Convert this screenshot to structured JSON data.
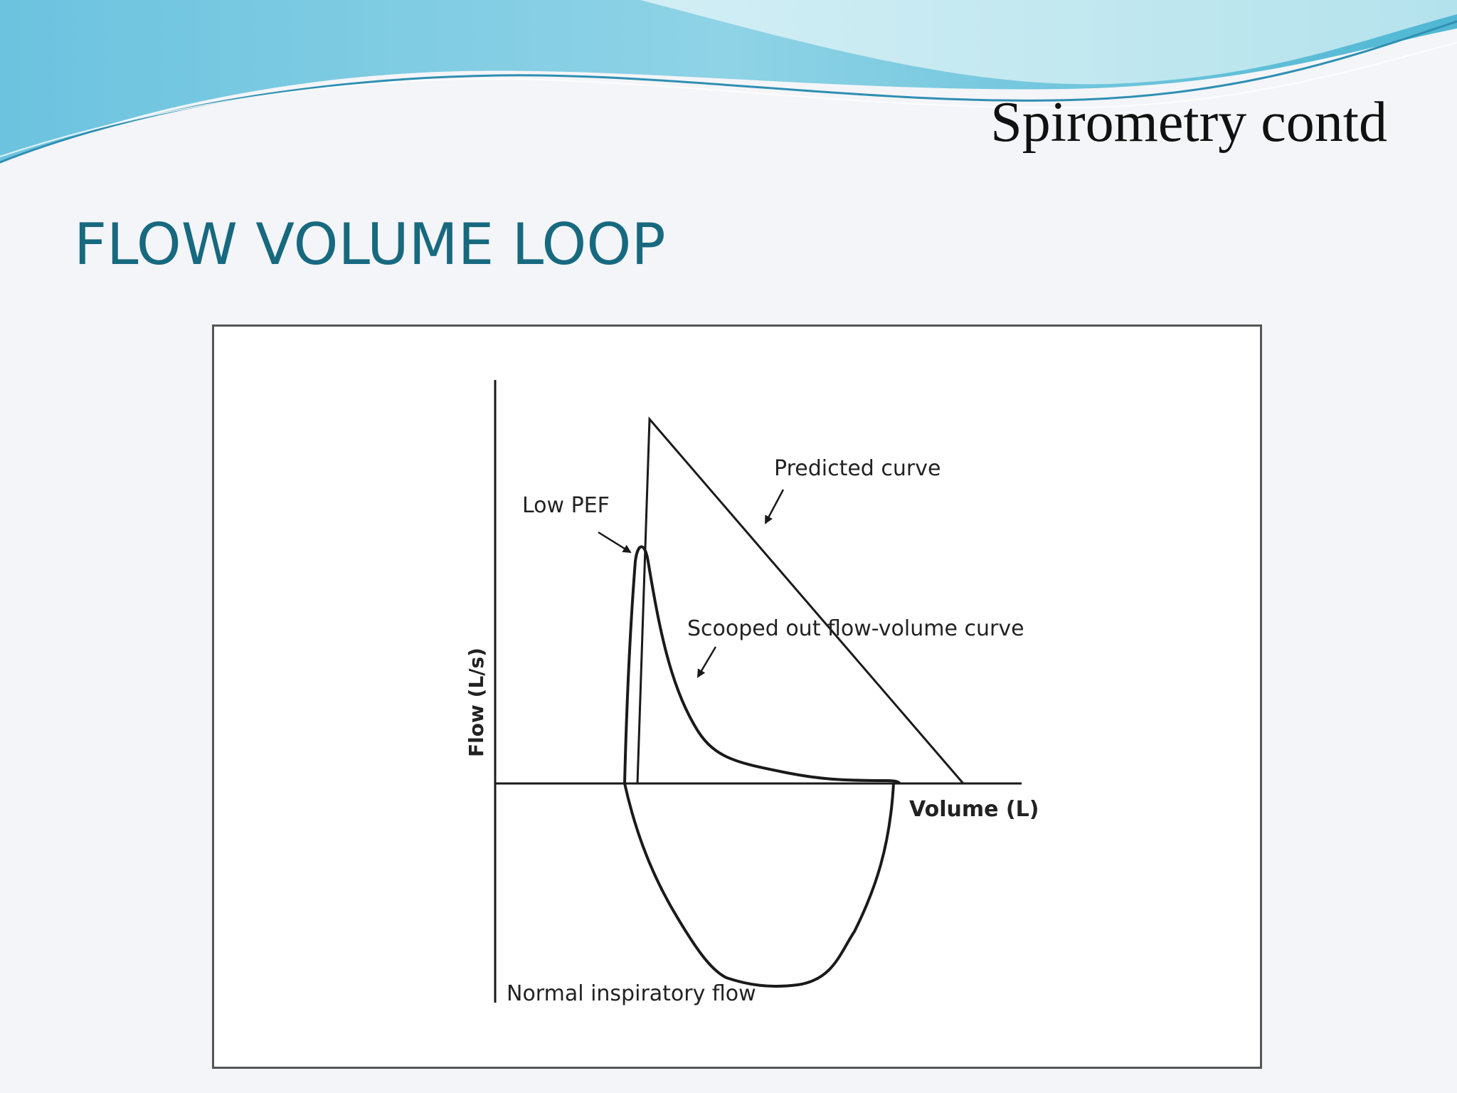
{
  "slide": {
    "header_title": "Spirometry  contd",
    "title": "FLOW VOLUME LOOP"
  },
  "diagram": {
    "y_axis_label": "Flow (L/s)",
    "x_axis_label": "Volume (L)",
    "annotations": {
      "predicted_curve": "Predicted curve",
      "low_pef": "Low PEF",
      "scooped_out": "Scooped out flow-volume curve",
      "normal_inspiratory": "Normal inspiratory flow"
    }
  },
  "colors": {
    "title": "#17697f",
    "wave_dark": "#5fb8d6",
    "wave_light": "#b7e6ef",
    "line": "#1a1a1a"
  }
}
